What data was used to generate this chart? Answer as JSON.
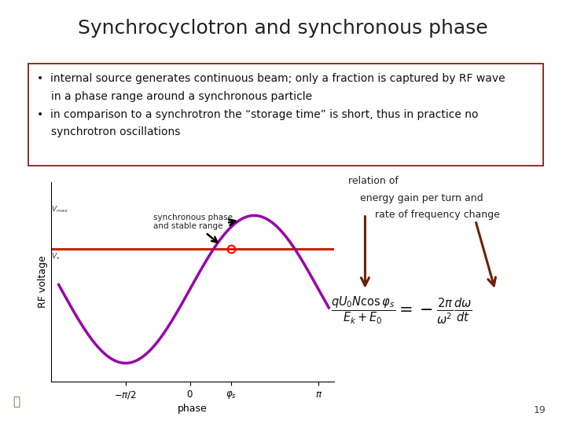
{
  "title": "Synchrocyclotron and synchronous phase",
  "title_fontsize": 18,
  "title_color": "#222222",
  "bullet1_line1": "internal source generates continuous beam; only a fraction is captured by RF wave",
  "bullet1_line2": "in a phase range around a synchronous particle",
  "bullet2_line1": "in comparison to a synchrotron the “storage time” is short, thus in practice no",
  "bullet2_line2": "synchrotron oscillations",
  "bullet_fontsize": 10,
  "box_edgecolor": "#8B1A1A",
  "plot_sine_color": "#9900AA",
  "plot_line_color": "#CC2200",
  "xlabel": "phase",
  "ylabel": "RF voltage",
  "xtick_labels": [
    "$-\\pi/2$",
    "$0$",
    "$\\varphi_s$",
    "$\\pi$"
  ],
  "annotation_text": "synchronous phase\nand stable range",
  "relation_line1": "relation of",
  "relation_line2": "  energy gain per turn and",
  "relation_line3": "     rate of frequency change",
  "formula": "$\\frac{qU_0N\\cos\\varphi_s}{E_k+E_0} = -\\frac{2\\pi}{\\omega^2}\\frac{d\\omega}{dt}$",
  "phi_s_value": 1.0,
  "sync_voltage": 0.55,
  "page_number": "19",
  "background_color": "#ffffff",
  "arrow_color": "#6B2000",
  "bottom_bar_color": "#D0D8C8",
  "logo_color": "#5A7A45"
}
